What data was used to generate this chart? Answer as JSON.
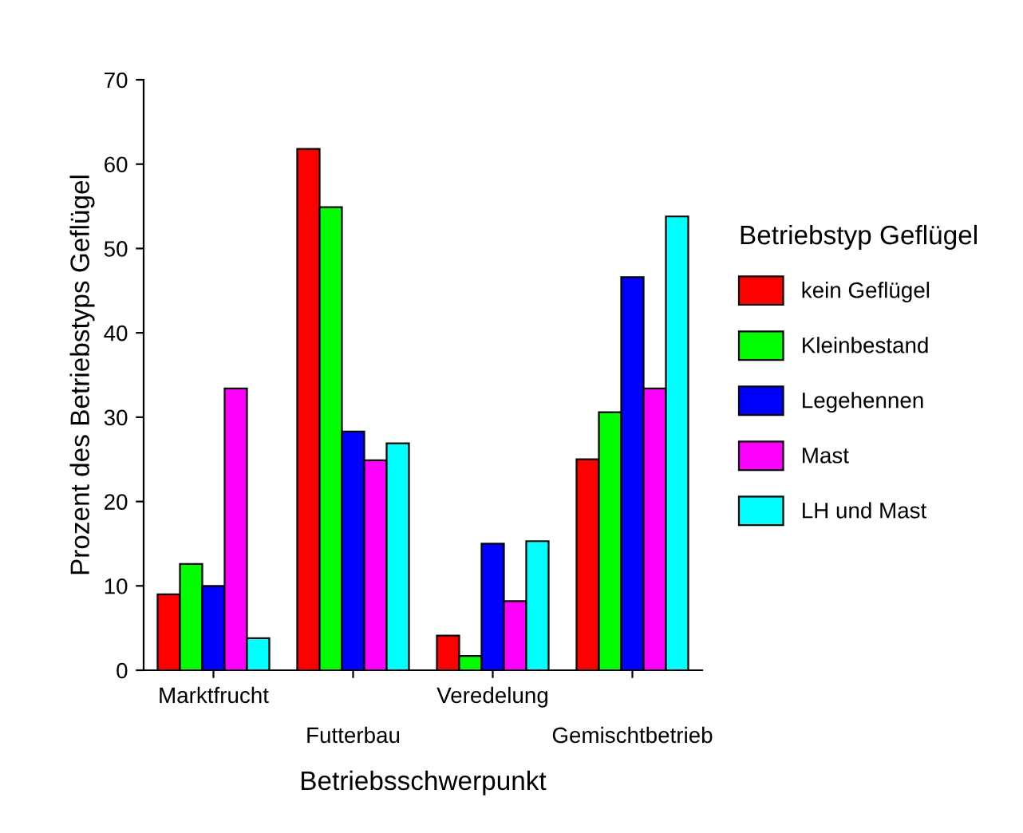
{
  "chart_data": {
    "type": "bar",
    "xlabel": "Betriebsschwerpunkt",
    "ylabel": "Prozent des Betriebstyps Geflügel",
    "legend_title": "Betriebstyp Geflügel",
    "categories": [
      "Marktfrucht",
      "Futterbau",
      "Veredelung",
      "Gemischtbetrieb"
    ],
    "series": [
      {
        "name": "kein Geflügel",
        "color": "#ff0000",
        "values": [
          9.0,
          61.8,
          4.1,
          25.0
        ]
      },
      {
        "name": "Kleinbestand",
        "color": "#00ff00",
        "values": [
          12.6,
          54.9,
          1.7,
          30.6
        ]
      },
      {
        "name": "Legehennen",
        "color": "#0000ff",
        "values": [
          10.0,
          28.3,
          15.0,
          46.6
        ]
      },
      {
        "name": "Mast",
        "color": "#ff00ff",
        "values": [
          33.4,
          24.9,
          8.2,
          33.4
        ]
      },
      {
        "name": "LH und Mast",
        "color": "#00ffff",
        "values": [
          3.8,
          26.9,
          15.3,
          53.8
        ]
      }
    ],
    "ylim": [
      0,
      70
    ],
    "yticks": [
      0,
      10,
      20,
      30,
      40,
      50,
      60,
      70
    ],
    "grid": false,
    "legend": "right"
  }
}
